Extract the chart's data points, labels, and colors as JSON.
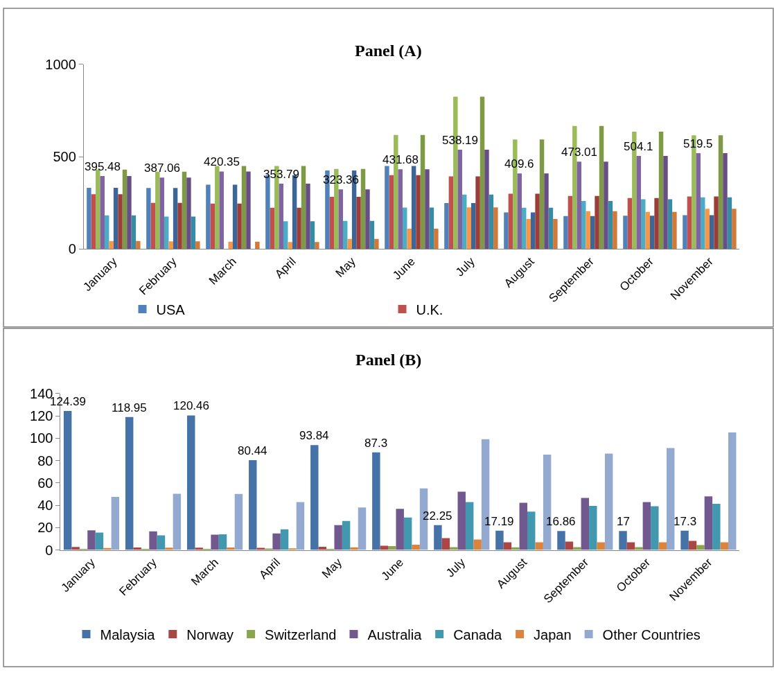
{
  "chart_data": [
    {
      "type": "bar",
      "title": "Panel (A)",
      "categories": [
        "January",
        "February",
        "March",
        "April",
        "May",
        "June",
        "July",
        "August",
        "September",
        "October",
        "November"
      ],
      "ylim": [
        0,
        1000
      ],
      "yticks": [
        0,
        500,
        1000
      ],
      "legend": "bottom",
      "series": [
        {
          "name": "USA",
          "color": "#4f81bd",
          "values": [
            332,
            331,
            349,
            400,
            426,
            450,
            249,
            199,
            179,
            181,
            184
          ]
        },
        {
          "name": "U.K.",
          "color": "#c0504d",
          "values": [
            297,
            250,
            246,
            224,
            283,
            400,
            394,
            300,
            288,
            276,
            285
          ]
        },
        {
          "color": "#9bbb59",
          "values": [
            430,
            419,
            450,
            450,
            434,
            618,
            825,
            593,
            667,
            636,
            616
          ]
        },
        {
          "color": "#8064a2",
          "values": [
            395.48,
            387.06,
            420.35,
            353.79,
            323.36,
            431.68,
            538.19,
            409.6,
            473.01,
            504.1,
            519.5
          ],
          "value_labels": [
            "395.48",
            "387.06",
            "420.35",
            "353.79",
            "323.36",
            "431.68",
            "538.19",
            "409.6",
            "473.01",
            "504.1",
            "519.5"
          ]
        },
        {
          "color": "#4bacc6",
          "values": [
            183,
            176,
            null,
            151,
            153,
            225,
            295,
            224,
            260,
            270,
            280
          ]
        },
        {
          "color": "#f79646",
          "values": [
            44,
            42,
            40,
            38,
            55,
            110,
            226,
            163,
            205,
            201,
            218
          ]
        },
        {
          "color": "#3c6696",
          "values": [
            332,
            331,
            349,
            400,
            426,
            450,
            249,
            199,
            179,
            181,
            184
          ]
        },
        {
          "color": "#9b3d3a",
          "values": [
            297,
            250,
            246,
            224,
            283,
            400,
            394,
            300,
            288,
            276,
            285
          ]
        },
        {
          "color": "#7e9a44",
          "values": [
            430,
            419,
            450,
            450,
            434,
            618,
            825,
            593,
            667,
            636,
            616
          ]
        },
        {
          "color": "#684e87",
          "values": [
            395.48,
            387.06,
            420.35,
            353.79,
            323.36,
            431.68,
            538.19,
            409.6,
            473.01,
            504.1,
            519.5
          ]
        },
        {
          "color": "#378ba3",
          "values": [
            183,
            176,
            null,
            151,
            153,
            225,
            295,
            224,
            260,
            270,
            280
          ]
        },
        {
          "color": "#d0793a",
          "values": [
            44,
            42,
            40,
            38,
            55,
            110,
            226,
            163,
            205,
            201,
            218
          ]
        }
      ]
    },
    {
      "type": "bar",
      "title": "Panel (B)",
      "categories": [
        "January",
        "February",
        "March",
        "April",
        "May",
        "June",
        "July",
        "August",
        "September",
        "October",
        "November"
      ],
      "ylim": [
        0,
        140
      ],
      "yticks": [
        0,
        20,
        40,
        60,
        80,
        100,
        120,
        140
      ],
      "legend": "bottom",
      "series": [
        {
          "name": "Malaysia",
          "color": "#4572a7",
          "values": [
            124.39,
            118.95,
            120.46,
            80.44,
            93.84,
            87.3,
            22.25,
            17.19,
            16.86,
            17,
            17.3
          ],
          "value_labels": [
            "124.39",
            "118.95",
            "120.46",
            "80.44",
            "93.84",
            "87.3",
            "22.25",
            "17.19",
            "16.86",
            "17",
            "17.3"
          ]
        },
        {
          "name": "Norway",
          "color": "#aa4643",
          "values": [
            2.6,
            2.2,
            2.0,
            1.9,
            2.8,
            3.8,
            10.6,
            6.8,
            7.4,
            6.8,
            8.1
          ]
        },
        {
          "name": "Switzerland",
          "color": "#89a54e",
          "values": [
            0.5,
            0.4,
            0.4,
            1.2,
            0.4,
            3.4,
            2.5,
            2.3,
            2.5,
            2.5,
            4.3
          ]
        },
        {
          "name": "Australia",
          "color": "#71588f",
          "values": [
            17.6,
            16.6,
            13.7,
            14.8,
            22.2,
            36.8,
            52.1,
            42.2,
            46.5,
            42.9,
            47.9
          ]
        },
        {
          "name": "Canada",
          "color": "#4198af",
          "values": [
            15.5,
            13.1,
            14.0,
            18.5,
            25.9,
            29.1,
            42.9,
            34.3,
            39.5,
            39.1,
            41.3
          ]
        },
        {
          "name": "Japan",
          "color": "#db843d",
          "values": [
            1.7,
            2.0,
            2.2,
            1.5,
            2.4,
            4.7,
            9.3,
            6.8,
            6.8,
            6.8,
            6.8
          ]
        },
        {
          "name": "Other Countries",
          "color": "#93a9cf",
          "values": [
            47.5,
            50.3,
            50.1,
            42.9,
            38.1,
            55.1,
            99.1,
            85.3,
            86.2,
            91.2,
            105.2
          ]
        }
      ]
    }
  ]
}
